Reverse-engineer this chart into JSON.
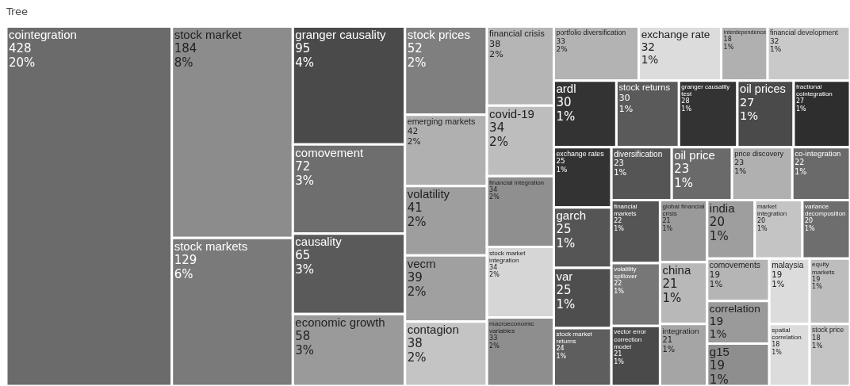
{
  "chart_data": {
    "type": "other",
    "title": "Tree",
    "categories": [
      "cointegration",
      "stock market",
      "stock markets",
      "granger causality",
      "comovement",
      "causality",
      "economic growth",
      "stock prices",
      "emerging markets",
      "volatility",
      "vecm",
      "contagion",
      "financial crisis",
      "covid-19",
      "financial integration",
      "stock market integration",
      "macroeconomic variables",
      "portfolio diversification",
      "exchange rate",
      "interdependence",
      "financial development",
      "ardl",
      "stock returns",
      "granger causality test",
      "oil prices",
      "fractional cointegration",
      "exchange rates",
      "garch",
      "var",
      "stock market returns",
      "diversification",
      "oil price",
      "price discovery",
      "co-integration",
      "financial markets",
      "volatility spillover",
      "vector error correction model",
      "global financial crisis",
      "china",
      "integration",
      "india",
      "market integration",
      "variance decomposition",
      "comovements",
      "correlation",
      "g15",
      "malaysia",
      "equity markets",
      "spatial correlation",
      "stock price"
    ],
    "values": [
      428,
      184,
      129,
      95,
      72,
      65,
      58,
      52,
      42,
      41,
      39,
      38,
      38,
      34,
      34,
      34,
      33,
      33,
      32,
      18,
      32,
      30,
      30,
      28,
      27,
      27,
      25,
      25,
      25,
      24,
      23,
      23,
      23,
      22,
      22,
      22,
      21,
      21,
      21,
      21,
      20,
      20,
      20,
      19,
      19,
      19,
      19,
      19,
      18,
      18
    ],
    "data_labels": true,
    "annotations": [
      {
        "text": "20%",
        "x": "cointegration"
      },
      {
        "text": "8%",
        "x": "stock market"
      },
      {
        "text": "6%",
        "x": "stock markets"
      },
      {
        "text": "4%",
        "x": "granger causality"
      },
      {
        "text": "3%",
        "x": "comovement"
      },
      {
        "text": "3%",
        "x": "causality"
      },
      {
        "text": "3%",
        "x": "economic growth"
      },
      {
        "text": "2%",
        "x": "stock prices"
      },
      {
        "text": "2%",
        "x": "emerging markets"
      },
      {
        "text": "2%",
        "x": "volatility"
      },
      {
        "text": "2%",
        "x": "vecm"
      },
      {
        "text": "2%",
        "x": "contagion"
      },
      {
        "text": "2%",
        "x": "financial crisis"
      },
      {
        "text": "2%",
        "x": "covid-19"
      },
      {
        "text": "2%",
        "x": "financial integration"
      },
      {
        "text": "2%",
        "x": "stock market integration"
      },
      {
        "text": "2%",
        "x": "macroeconomic variables"
      },
      {
        "text": "2%",
        "x": "portfolio diversification"
      },
      {
        "text": "1%",
        "x": "exchange rate"
      },
      {
        "text": "1%",
        "x": "financial development"
      },
      {
        "text": "1%",
        "x": "ardl"
      },
      {
        "text": "1%",
        "x": "stock returns"
      },
      {
        "text": "1%",
        "x": "granger causality test"
      },
      {
        "text": "1%",
        "x": "oil prices"
      },
      {
        "text": "1%",
        "x": "fractional cointegration"
      },
      {
        "text": "1%",
        "x": "exchange rates"
      },
      {
        "text": "1%",
        "x": "garch"
      },
      {
        "text": "1%",
        "x": "var"
      },
      {
        "text": "1%",
        "x": "stock market returns"
      },
      {
        "text": "1%",
        "x": "diversification"
      },
      {
        "text": "1%",
        "x": "oil price"
      },
      {
        "text": "1%",
        "x": "price discovery"
      },
      {
        "text": "1%",
        "x": "co-integration"
      },
      {
        "text": "1%",
        "x": "financial markets"
      },
      {
        "text": "1%",
        "x": "volatility spillover"
      },
      {
        "text": "1%",
        "x": "vector error correction model"
      },
      {
        "text": "1%",
        "x": "global financial crisis"
      },
      {
        "text": "1%",
        "x": "china"
      },
      {
        "text": "1%",
        "x": "integration"
      },
      {
        "text": "1%",
        "x": "india"
      },
      {
        "text": "1%",
        "x": "market integration"
      },
      {
        "text": "1%",
        "x": "variance decomposition"
      },
      {
        "text": "1%",
        "x": "comovements"
      },
      {
        "text": "1%",
        "x": "correlation"
      },
      {
        "text": "1%",
        "x": "g15"
      },
      {
        "text": "1%",
        "x": "malaysia"
      },
      {
        "text": "1%",
        "x": "equity markets"
      },
      {
        "text": "1%",
        "x": "interdependence"
      },
      {
        "text": "1%",
        "x": "spatial correlation"
      },
      {
        "text": "1%",
        "x": "stock price"
      }
    ],
    "colors": [
      "#6b6b6b",
      "#8c8c8c",
      "#7a7a7a",
      "#4a4a4a",
      "#6e6e6e",
      "#5a5a5a",
      "#9a9a9a",
      "#7f7f7f",
      "#b0b0b0",
      "#9e9e9e",
      "#a0a0a0",
      "#c4c4c4",
      "#b5b5b5",
      "#bdbdbd",
      "#8f8f8f",
      "#d6d6d6",
      "#8e8e8e",
      "#b3b3b3",
      "#dcdcdc",
      "#b0b0b0",
      "#c9c9c9",
      "#333333",
      "#5a5a5a",
      "#333333",
      "#4a4a4a",
      "#2e2e2e",
      "#333333",
      "#555555",
      "#4e4e4e",
      "#5e5e5e",
      "#555555",
      "#6a6a6a",
      "#b0b0b0",
      "#6a6a6a",
      "#555555",
      "#777777",
      "#4a4a4a",
      "#9a9a9a",
      "#b8b8b8",
      "#a5a5a5",
      "#9e9e9e",
      "#c4c4c4",
      "#6e6e6e",
      "#b5b5b5",
      "#9a9a9a",
      "#8e8e8e",
      "#dcdcdc",
      "#bdbdbd",
      "#dcdcdc",
      "#c4c4c4"
    ]
  }
}
